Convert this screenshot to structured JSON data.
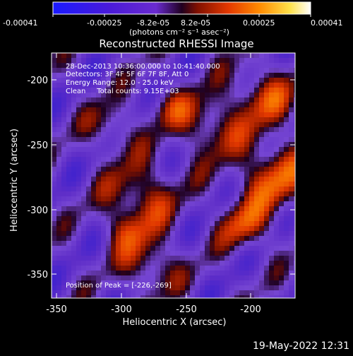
{
  "colorbar": {
    "tick_labels": [
      "-0.00041",
      "-0.00025",
      "-8.2e-05",
      "8.2e-05",
      "0.00025",
      "0.00041"
    ],
    "units": "(photons cm⁻² s⁻¹ asec⁻²)"
  },
  "title": "Reconstructed RHESSI Image",
  "annotations": {
    "time_range": "28-Dec-2013 10:36:00.000 to 10:41:40.000",
    "detectors": "Detectors: 3F 4F 5F 6F 7F 8F, Att 0",
    "energy_range": "Energy Range: 12.0 - 25.0 keV",
    "clean_counts": "Clean     Total counts: 9.15E+03",
    "peak_position": "Position of Peak = [-226,-269]"
  },
  "x_axis": {
    "label": "Heliocentric X (arcsec)",
    "ticks": [
      "-350",
      "-300",
      "-250",
      "-200"
    ]
  },
  "y_axis": {
    "label": "Heliocentric Y (arcsec)",
    "ticks": [
      "-200",
      "-250",
      "-300",
      "-350"
    ]
  },
  "footer": {
    "timestamp": "19-May-2022 12:31"
  }
}
